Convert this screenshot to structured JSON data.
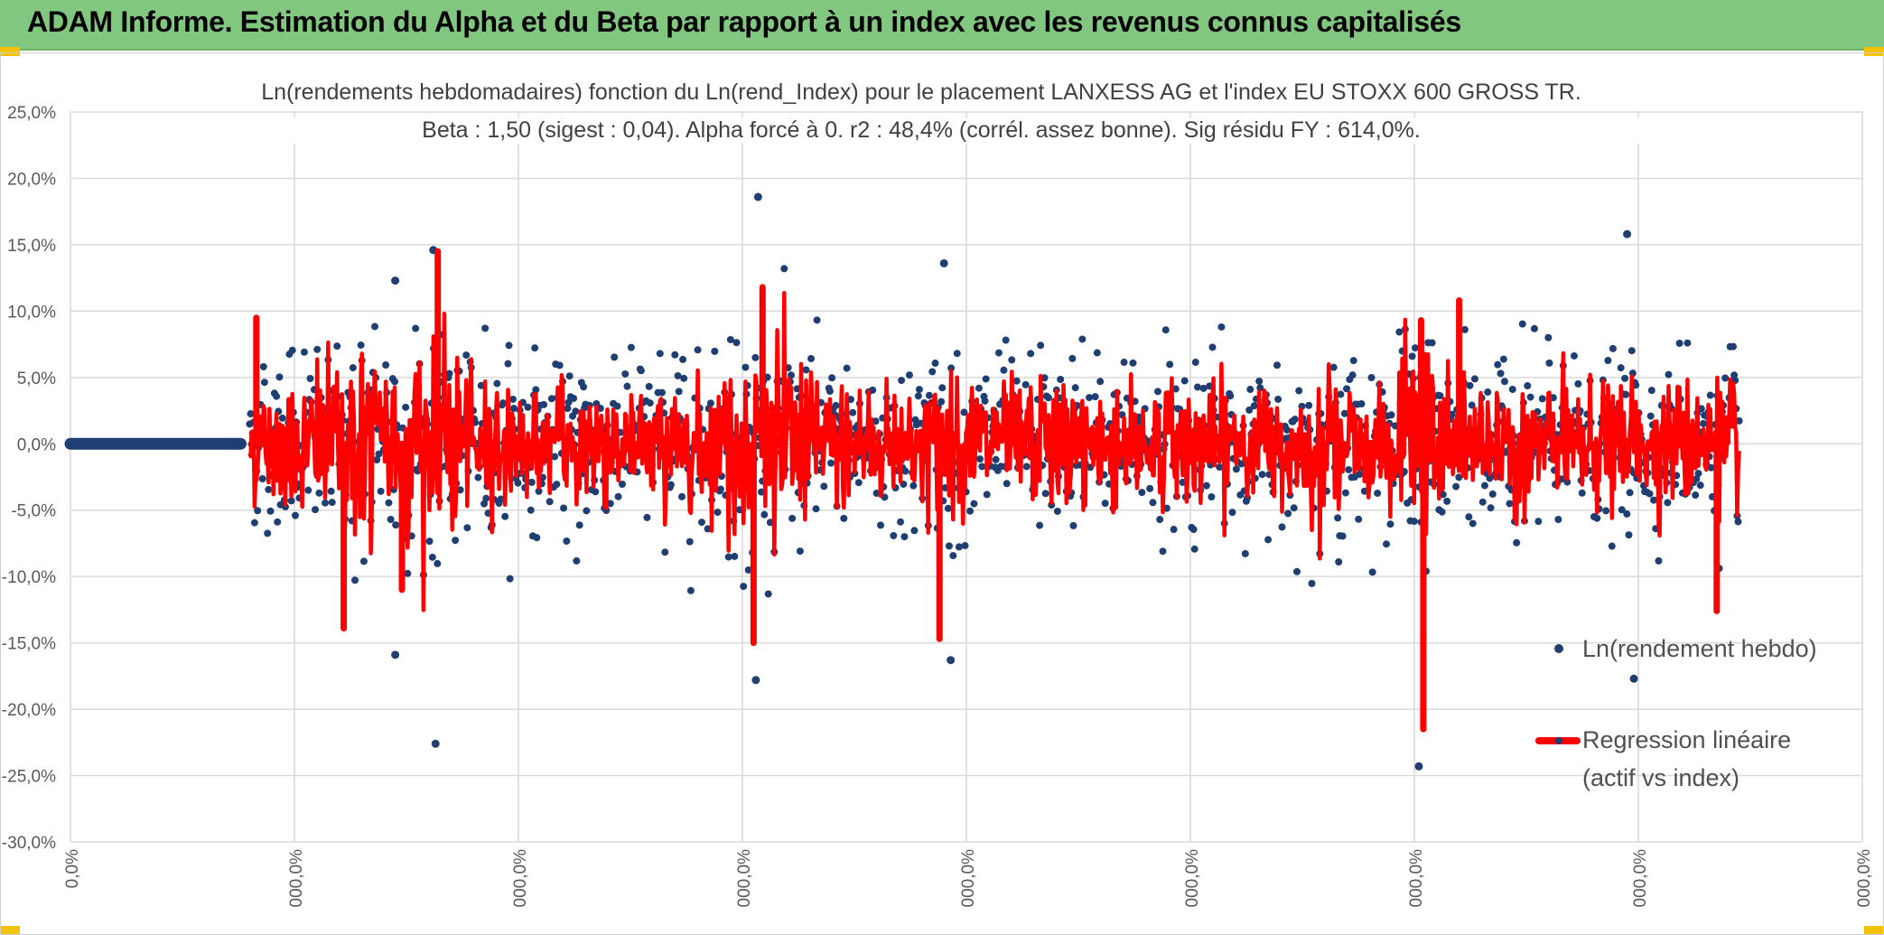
{
  "header": {
    "title": "ADAM Informe. Estimation du Alpha et du Beta par rapport à un index avec les revenus connus capitalisés"
  },
  "colors": {
    "header_bg": "#82c77f",
    "scatter": "#1f3f73",
    "regression": "#ff0000",
    "grid": "#d9d9d9"
  },
  "chart_data": {
    "type": "scatter",
    "title_line1": "Ln(rendements hebdomadaires) fonction du Ln(rend_Index) pour le placement LANXESS AG et l'index EU STOXX 600 GROSS TR.",
    "title_line2": "Beta : 1,50 (sigest : 0,04). Alpha forcé à 0. r2 : 48,4% (corrél. assez bonne). Sig résidu FY : 614,0%.",
    "ylim": [
      -30,
      25
    ],
    "y_ticks": [
      25,
      20,
      15,
      10,
      5,
      0,
      -5,
      -10,
      -15,
      -20,
      -25,
      -30
    ],
    "y_tick_labels": [
      "25,0%",
      "20,0%",
      "15,0%",
      "10,0%",
      "5,0%",
      "0,0%",
      "-5,0%",
      "-10,0%",
      "-15,0%",
      "-20,0%",
      "-25,0%",
      "-30,0%"
    ],
    "x_tick_labels": [
      "0,0%",
      "000,0%",
      "000,0%",
      "000,0%",
      "000,0%",
      "000,0%",
      "000,0%",
      "000,0%",
      "000,0%"
    ],
    "x_count": 8,
    "beta": 1.5,
    "alpha": 0,
    "r2_percent": 48.4,
    "n_points": 1500,
    "zero_segment_end": 0.76,
    "highlight_points": [
      {
        "x": 3.07,
        "y": 18.6
      },
      {
        "x": 1.62,
        "y": 14.6
      },
      {
        "x": 6.95,
        "y": 15.8
      },
      {
        "x": 3.9,
        "y": 13.6
      },
      {
        "x": 1.45,
        "y": 12.3
      },
      {
        "x": 1.63,
        "y": -22.6
      },
      {
        "x": 6.02,
        "y": -24.3
      },
      {
        "x": 6.98,
        "y": -17.7
      },
      {
        "x": 3.06,
        "y": -17.8
      },
      {
        "x": 1.45,
        "y": -15.9
      },
      {
        "x": 3.93,
        "y": -16.3
      }
    ],
    "regression_spikes": [
      {
        "x": 6.04,
        "y": -21.5
      },
      {
        "x": 6.03,
        "y": 9.3
      },
      {
        "x": 6.2,
        "y": 10.8
      },
      {
        "x": 1.64,
        "y": 14.5
      },
      {
        "x": 3.09,
        "y": 11.8
      },
      {
        "x": 3.05,
        "y": -15.0
      },
      {
        "x": 3.88,
        "y": -14.7
      },
      {
        "x": 1.22,
        "y": -13.9
      },
      {
        "x": 7.35,
        "y": -12.6
      },
      {
        "x": 0.83,
        "y": 9.5
      },
      {
        "x": 1.48,
        "y": -11.0
      }
    ],
    "legend": [
      {
        "label": "Ln(rendement hebdo)",
        "kind": "marker"
      },
      {
        "label": "Regression linéaire",
        "label2": "(actif vs index)",
        "kind": "line"
      }
    ]
  }
}
